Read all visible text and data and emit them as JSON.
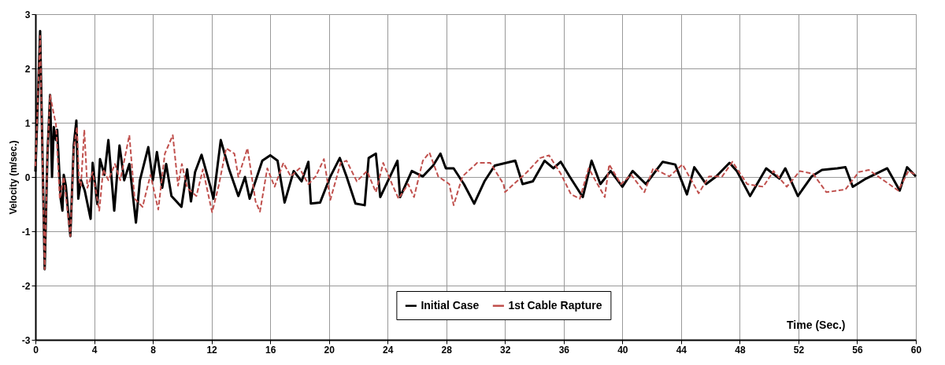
{
  "chart_data": {
    "type": "line",
    "xlabel": "Time (Sec.)",
    "ylabel": "Velocity (m/sec.)",
    "xlim": [
      0,
      60
    ],
    "xticks": [
      0,
      4,
      8,
      12,
      16,
      20,
      24,
      28,
      32,
      36,
      40,
      44,
      48,
      52,
      56,
      60
    ],
    "ylim": [
      -3,
      3
    ],
    "yticks": [
      -3,
      -2,
      -1,
      0,
      1,
      2,
      3
    ],
    "grid": true,
    "legend": "bottom",
    "series": [
      {
        "name": "Initial Case",
        "color": "#000000",
        "line_style": "solid",
        "x": [
          0,
          0.32,
          0.63,
          0.82,
          1.0,
          1.13,
          1.25,
          1.4,
          1.48,
          1.72,
          1.84,
          1.93,
          2.07,
          2.38,
          2.61,
          2.79,
          2.92,
          3.1,
          3.36,
          3.76,
          3.9,
          4.22,
          4.4,
          4.7,
          4.97,
          5.37,
          5.73,
          6.05,
          6.4,
          6.85,
          7.12,
          7.69,
          8.0,
          8.28,
          8.64,
          8.91,
          9.27,
          9.95,
          10.34,
          10.6,
          10.88,
          11.32,
          11.95,
          12.13,
          12.63,
          13.2,
          13.83,
          14.28,
          14.6,
          15.46,
          16.0,
          16.5,
          16.98,
          17.6,
          18.14,
          18.6,
          18.77,
          19.4,
          20.1,
          20.74,
          21.2,
          21.81,
          22.44,
          22.71,
          23.2,
          23.5,
          24.67,
          24.85,
          25.65,
          26.4,
          27.1,
          27.6,
          27.97,
          28.5,
          29.2,
          29.9,
          30.6,
          31.3,
          32.7,
          33.2,
          33.9,
          34.7,
          35.3,
          35.8,
          36.4,
          37.3,
          37.9,
          38.5,
          39.2,
          40.0,
          40.7,
          41.6,
          42.75,
          43.6,
          44.4,
          44.9,
          45.7,
          46.4,
          47.3,
          47.8,
          48.7,
          49.8,
          50.7,
          51.1,
          51.96,
          52.9,
          53.6,
          54.65,
          55.2,
          55.7,
          56.6,
          58.05,
          58.9,
          59.4,
          60.0
        ],
        "values": [
          0.1,
          2.69,
          -1.7,
          0.43,
          1.51,
          0.0,
          0.92,
          0.68,
          0.87,
          -0.4,
          -0.62,
          0.04,
          -0.16,
          -1.09,
          0.58,
          1.04,
          -0.4,
          -0.06,
          -0.25,
          -0.77,
          0.26,
          -0.5,
          0.33,
          0.04,
          0.68,
          -0.62,
          0.58,
          -0.06,
          0.24,
          -0.84,
          -0.06,
          0.55,
          -0.06,
          0.46,
          -0.2,
          0.24,
          -0.35,
          -0.55,
          0.14,
          -0.45,
          0.09,
          0.41,
          -0.2,
          -0.4,
          0.68,
          0.14,
          -0.35,
          0.0,
          -0.4,
          0.3,
          0.4,
          0.3,
          -0.47,
          0.11,
          -0.08,
          0.28,
          -0.49,
          -0.47,
          0.01,
          0.35,
          0.01,
          -0.49,
          -0.52,
          0.35,
          0.43,
          -0.37,
          0.3,
          -0.37,
          0.11,
          0.01,
          0.21,
          0.43,
          0.16,
          0.16,
          -0.13,
          -0.49,
          -0.08,
          0.21,
          0.3,
          -0.13,
          -0.08,
          0.3,
          0.16,
          0.28,
          0.01,
          -0.37,
          0.3,
          -0.13,
          0.11,
          -0.18,
          0.11,
          -0.13,
          0.28,
          0.23,
          -0.32,
          0.18,
          -0.13,
          0.01,
          0.26,
          0.11,
          -0.35,
          0.16,
          -0.03,
          0.16,
          -0.35,
          0.01,
          0.13,
          0.16,
          0.18,
          -0.18,
          -0.03,
          0.16,
          -0.25,
          0.18,
          0.01
        ]
      },
      {
        "name": "1st Cable Rapture",
        "color": "#c0504d",
        "line_style": "dashed",
        "x": [
          0,
          0.32,
          0.63,
          0.82,
          1.0,
          1.22,
          1.4,
          1.66,
          1.93,
          2.38,
          2.61,
          2.83,
          2.97,
          3.1,
          3.33,
          3.54,
          3.9,
          4.35,
          4.62,
          4.97,
          5.42,
          5.78,
          6.4,
          6.76,
          7.3,
          7.84,
          8.37,
          8.82,
          9.36,
          9.72,
          9.98,
          10.34,
          10.97,
          11.41,
          12.04,
          12.49,
          13.0,
          13.56,
          13.83,
          14.45,
          15.0,
          15.3,
          15.8,
          16.3,
          16.9,
          17.4,
          18.0,
          18.6,
          19.1,
          19.66,
          20.1,
          20.8,
          21.2,
          21.9,
          22.6,
          23.2,
          23.7,
          24.3,
          24.75,
          25.4,
          25.8,
          26.4,
          26.85,
          27.45,
          28.2,
          28.5,
          29.1,
          30.1,
          31.0,
          31.9,
          32.0,
          32.6,
          33.5,
          34.4,
          35.0,
          35.8,
          36.5,
          37.1,
          37.7,
          38.8,
          39.1,
          39.9,
          40.6,
          41.5,
          42.1,
          43.2,
          44.1,
          45.2,
          45.9,
          46.8,
          47.5,
          48.5,
          49.6,
          50.3,
          51.2,
          52.1,
          53.0,
          53.9,
          55.2,
          56.1,
          56.8,
          57.9,
          58.8,
          59.5,
          60.0
        ],
        "values": [
          0.2,
          2.6,
          -1.7,
          0.43,
          1.51,
          1.2,
          0.97,
          -0.4,
          0.0,
          -1.09,
          0.53,
          0.92,
          -0.06,
          -0.16,
          0.87,
          -0.2,
          0.09,
          -0.62,
          0.14,
          -0.06,
          0.24,
          -0.06,
          0.77,
          -0.4,
          -0.55,
          0.04,
          -0.6,
          0.43,
          0.77,
          -0.16,
          0.24,
          -0.2,
          -0.35,
          0.14,
          -0.65,
          -0.16,
          0.53,
          0.43,
          0.0,
          0.53,
          -0.45,
          -0.64,
          0.16,
          -0.18,
          0.26,
          0.01,
          0.16,
          -0.13,
          0.01,
          0.33,
          -0.42,
          0.26,
          0.3,
          -0.08,
          0.11,
          -0.28,
          0.26,
          -0.13,
          -0.4,
          -0.13,
          -0.37,
          0.3,
          0.45,
          0.01,
          -0.13,
          -0.52,
          0.01,
          0.26,
          0.26,
          -0.13,
          -0.28,
          -0.13,
          0.09,
          0.35,
          0.4,
          0.06,
          -0.32,
          -0.4,
          0.16,
          -0.37,
          0.23,
          -0.13,
          0.04,
          -0.28,
          0.16,
          0.01,
          0.23,
          -0.3,
          0.01,
          0.01,
          0.28,
          -0.13,
          -0.18,
          0.11,
          -0.18,
          0.11,
          0.06,
          -0.28,
          -0.23,
          0.09,
          0.13,
          -0.08,
          -0.25,
          0.11,
          0.04
        ]
      }
    ]
  }
}
